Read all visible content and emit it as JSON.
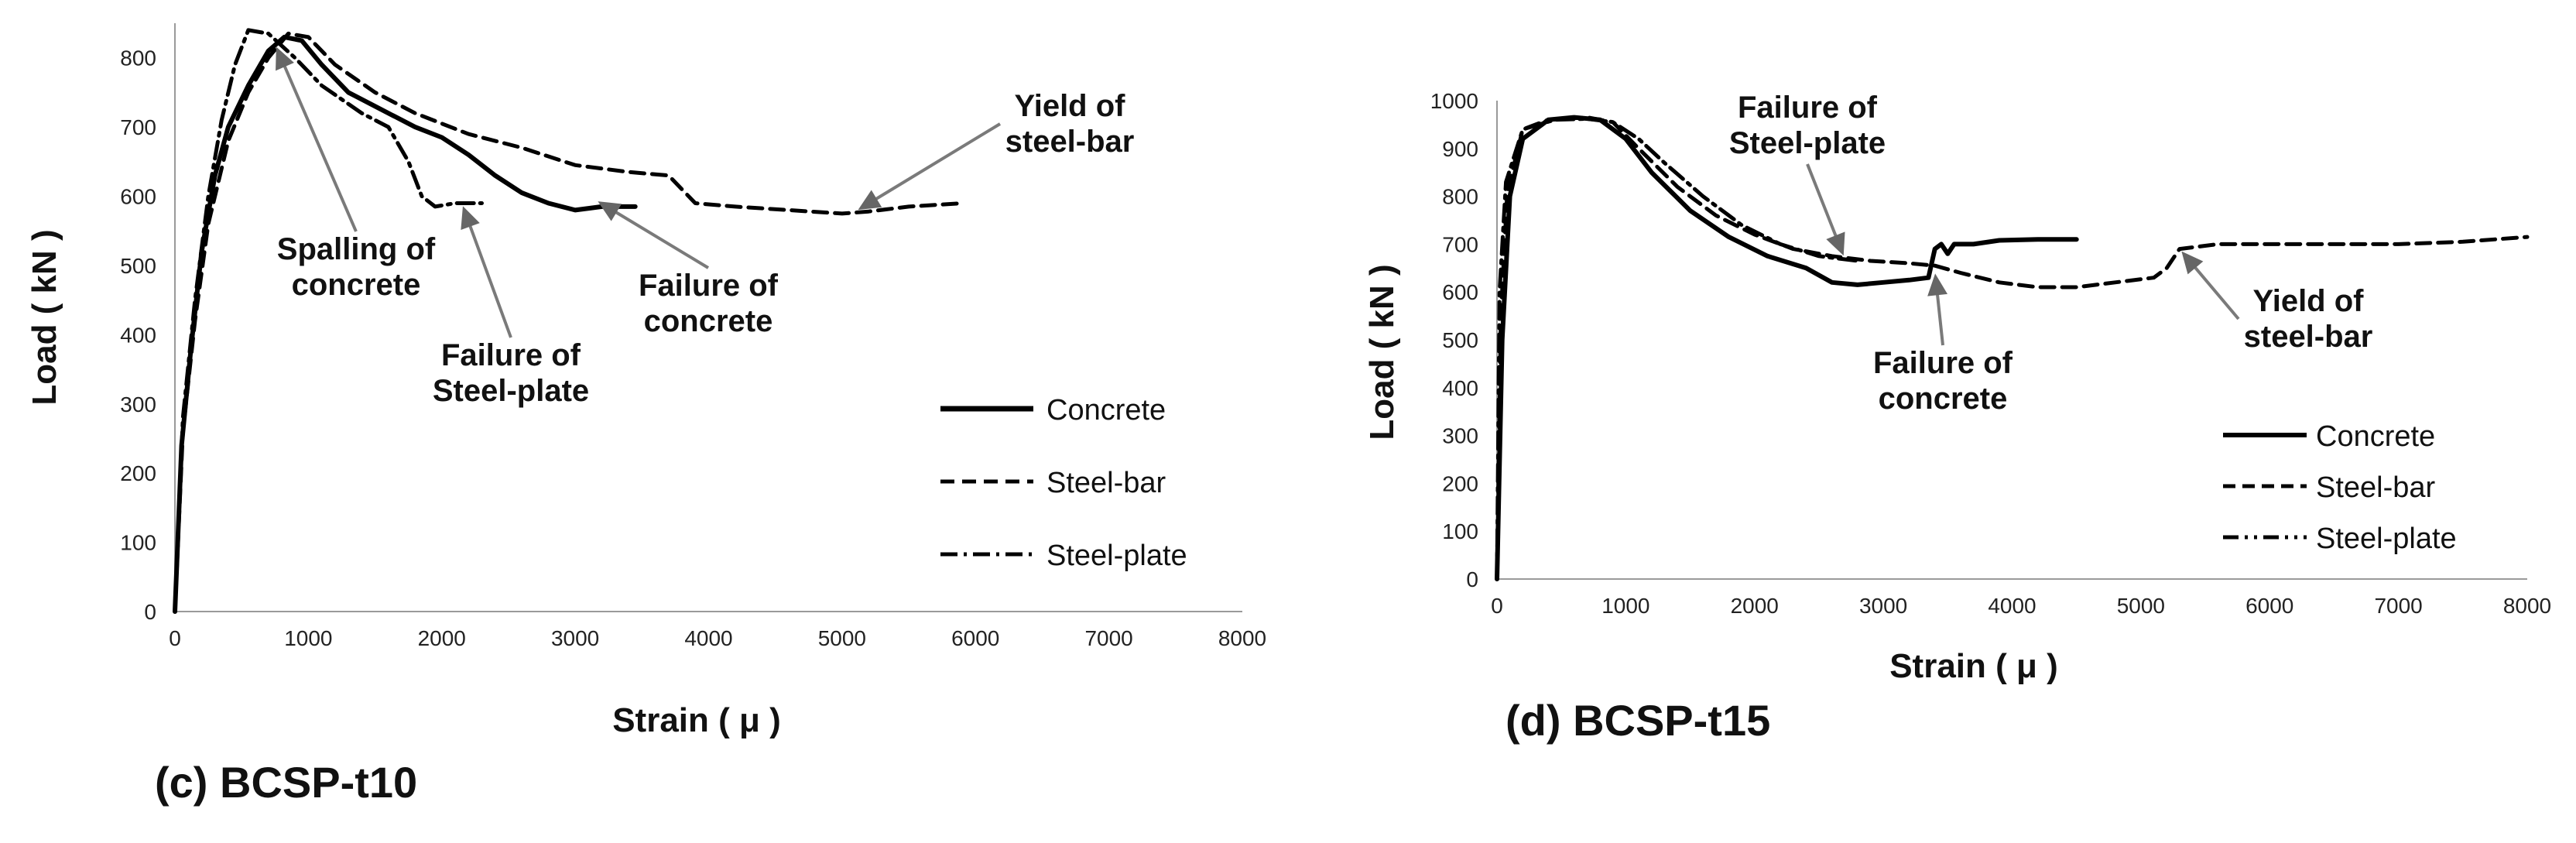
{
  "chart_data": [
    {
      "id": "c",
      "type": "line",
      "caption": "(c) BCSP-t10",
      "xlabel": "Strain ( μ )",
      "ylabel": "Load ( kN )",
      "xlim": [
        0,
        8000
      ],
      "ylim": [
        0,
        850
      ],
      "xticks": [
        0,
        1000,
        2000,
        3000,
        4000,
        5000,
        6000,
        7000,
        8000
      ],
      "yticks": [
        0,
        100,
        200,
        300,
        400,
        500,
        600,
        700,
        800
      ],
      "legend": [
        "Concrete",
        "Steel-bar",
        "Steel-plate"
      ],
      "legend_position": "bottom-right",
      "series": [
        {
          "name": "Concrete",
          "style": "solid",
          "points": [
            [
              0,
              0
            ],
            [
              50,
              240
            ],
            [
              120,
              380
            ],
            [
              200,
              520
            ],
            [
              300,
              630
            ],
            [
              400,
              700
            ],
            [
              550,
              760
            ],
            [
              700,
              810
            ],
            [
              820,
              830
            ],
            [
              950,
              825
            ],
            [
              1100,
              790
            ],
            [
              1300,
              750
            ],
            [
              1500,
              730
            ],
            [
              1800,
              700
            ],
            [
              2000,
              685
            ],
            [
              2200,
              660
            ],
            [
              2400,
              630
            ],
            [
              2600,
              605
            ],
            [
              2800,
              590
            ],
            [
              3000,
              580
            ],
            [
              3200,
              585
            ],
            [
              3450,
              585
            ]
          ]
        },
        {
          "name": "Steel-bar",
          "style": "dashed",
          "points": [
            [
              0,
              0
            ],
            [
              60,
              260
            ],
            [
              150,
              420
            ],
            [
              250,
              560
            ],
            [
              400,
              680
            ],
            [
              550,
              750
            ],
            [
              700,
              800
            ],
            [
              850,
              835
            ],
            [
              1000,
              830
            ],
            [
              1200,
              790
            ],
            [
              1500,
              750
            ],
            [
              1800,
              720
            ],
            [
              2200,
              690
            ],
            [
              2600,
              670
            ],
            [
              3000,
              645
            ],
            [
              3400,
              635
            ],
            [
              3700,
              630
            ],
            [
              3900,
              590
            ],
            [
              4200,
              585
            ],
            [
              4600,
              580
            ],
            [
              5000,
              575
            ],
            [
              5200,
              578
            ],
            [
              5500,
              585
            ],
            [
              5900,
              590
            ]
          ]
        },
        {
          "name": "Steel-plate",
          "style": "dashdot",
          "points": [
            [
              0,
              0
            ],
            [
              60,
              280
            ],
            [
              150,
              450
            ],
            [
              250,
              600
            ],
            [
              350,
              710
            ],
            [
              450,
              790
            ],
            [
              550,
              840
            ],
            [
              700,
              835
            ],
            [
              900,
              800
            ],
            [
              1100,
              760
            ],
            [
              1400,
              720
            ],
            [
              1600,
              700
            ],
            [
              1750,
              650
            ],
            [
              1850,
              600
            ],
            [
              1950,
              585
            ],
            [
              2100,
              590
            ],
            [
              2300,
              590
            ]
          ]
        }
      ],
      "annotations": [
        {
          "lines": [
            "Spalling of",
            "concrete"
          ],
          "target": [
            750,
            820
          ]
        },
        {
          "lines": [
            "Failure of",
            "Steel-plate"
          ],
          "target": [
            2150,
            590
          ]
        },
        {
          "lines": [
            "Failure of",
            "concrete"
          ],
          "target": [
            3150,
            595
          ]
        },
        {
          "lines": [
            "Yield of",
            "steel-bar"
          ],
          "target": [
            5100,
            578
          ]
        }
      ]
    },
    {
      "id": "d",
      "type": "line",
      "caption": "(d) BCSP-t15",
      "xlabel": "Strain ( μ )",
      "ylabel": "Load ( kN )",
      "xlim": [
        0,
        8000
      ],
      "ylim": [
        0,
        1000
      ],
      "xticks": [
        0,
        1000,
        2000,
        3000,
        4000,
        5000,
        6000,
        7000,
        8000
      ],
      "yticks": [
        0,
        100,
        200,
        300,
        400,
        500,
        600,
        700,
        800,
        900,
        1000
      ],
      "legend": [
        "Concrete",
        "Steel-bar",
        "Steel-plate"
      ],
      "legend_position": "bottom-right",
      "series": [
        {
          "name": "Concrete",
          "style": "solid",
          "points": [
            [
              0,
              0
            ],
            [
              40,
              500
            ],
            [
              100,
              800
            ],
            [
              200,
              920
            ],
            [
              400,
              960
            ],
            [
              600,
              965
            ],
            [
              800,
              960
            ],
            [
              1000,
              920
            ],
            [
              1200,
              850
            ],
            [
              1500,
              770
            ],
            [
              1800,
              715
            ],
            [
              2100,
              675
            ],
            [
              2400,
              650
            ],
            [
              2600,
              620
            ],
            [
              2800,
              615
            ],
            [
              3000,
              620
            ],
            [
              3200,
              625
            ],
            [
              3350,
              630
            ],
            [
              3400,
              690
            ],
            [
              3450,
              700
            ],
            [
              3500,
              680
            ],
            [
              3550,
              700
            ],
            [
              3700,
              700
            ],
            [
              3900,
              708
            ],
            [
              4200,
              710
            ],
            [
              4500,
              710
            ]
          ]
        },
        {
          "name": "Steel-bar",
          "style": "dashed",
          "points": [
            [
              0,
              0
            ],
            [
              30,
              550
            ],
            [
              80,
              810
            ],
            [
              200,
              940
            ],
            [
              400,
              960
            ],
            [
              700,
              965
            ],
            [
              900,
              955
            ],
            [
              1100,
              900
            ],
            [
              1400,
              820
            ],
            [
              1700,
              760
            ],
            [
              2000,
              720
            ],
            [
              2300,
              690
            ],
            [
              2600,
              675
            ],
            [
              2900,
              665
            ],
            [
              3200,
              660
            ],
            [
              3400,
              655
            ],
            [
              3600,
              640
            ],
            [
              3900,
              620
            ],
            [
              4200,
              610
            ],
            [
              4500,
              610
            ],
            [
              4800,
              620
            ],
            [
              5100,
              630
            ],
            [
              5200,
              650
            ],
            [
              5300,
              690
            ],
            [
              5600,
              700
            ],
            [
              6000,
              700
            ],
            [
              6500,
              700
            ],
            [
              7000,
              700
            ],
            [
              7500,
              705
            ],
            [
              8000,
              715
            ]
          ]
        },
        {
          "name": "Steel-plate",
          "style": "dashdot",
          "points": [
            [
              0,
              0
            ],
            [
              20,
              600
            ],
            [
              70,
              830
            ],
            [
              200,
              940
            ],
            [
              450,
              960
            ],
            [
              700,
              962
            ],
            [
              900,
              955
            ],
            [
              1100,
              920
            ],
            [
              1300,
              870
            ],
            [
              1600,
              800
            ],
            [
              1900,
              740
            ],
            [
              2200,
              700
            ],
            [
              2500,
              675
            ],
            [
              2800,
              665
            ]
          ]
        }
      ],
      "annotations": [
        {
          "lines": [
            "Failure of",
            "Steel-plate"
          ],
          "target": [
            2700,
            670
          ]
        },
        {
          "lines": [
            "Failure of",
            "concrete"
          ],
          "target": [
            3400,
            645
          ]
        },
        {
          "lines": [
            "Yield of",
            "steel-bar"
          ],
          "target": [
            5300,
            690
          ]
        }
      ]
    }
  ]
}
